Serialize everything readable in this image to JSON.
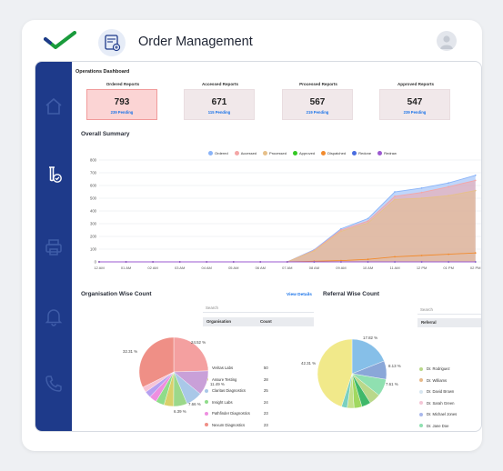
{
  "app": {
    "title": "Order Management"
  },
  "dashboard": {
    "title": "Operations Dashboard",
    "stats": [
      {
        "label": "Ordered Reports",
        "value": "793",
        "pending": "239 Pending",
        "active": true
      },
      {
        "label": "Accessed Reports",
        "value": "671",
        "pending": "115 Pending",
        "active": false
      },
      {
        "label": "Processed Reports",
        "value": "567",
        "pending": "219 Pending",
        "active": false
      },
      {
        "label": "Approved Reports",
        "value": "547",
        "pending": "239 Pending",
        "active": false
      }
    ]
  },
  "overall": {
    "title": "Overall Summary"
  },
  "chart_data": {
    "type": "area",
    "title": "Overall Summary",
    "x": [
      "12 AM",
      "01 AM",
      "02 AM",
      "03 AM",
      "04 AM",
      "05 AM",
      "06 AM",
      "07 AM",
      "08 AM",
      "09 AM",
      "10 AM",
      "11 AM",
      "12 PM",
      "01 PM",
      "02 PM"
    ],
    "ylim": [
      0,
      800
    ],
    "yticks": [
      "800",
      "700",
      "600",
      "500",
      "400",
      "300",
      "200",
      "100",
      "0"
    ],
    "legend_position": "top",
    "series": [
      {
        "name": "Ordered",
        "color": "#8ab4f8",
        "values": [
          0,
          0,
          0,
          0,
          0,
          0,
          0,
          0,
          95,
          260,
          340,
          550,
          580,
          620,
          680
        ]
      },
      {
        "name": "Accessed",
        "color": "#f4a6a6",
        "values": [
          0,
          0,
          0,
          0,
          0,
          0,
          0,
          0,
          90,
          250,
          320,
          515,
          545,
          590,
          640
        ]
      },
      {
        "name": "Processed",
        "color": "#e6c08a",
        "values": [
          0,
          0,
          0,
          0,
          0,
          0,
          0,
          0,
          85,
          240,
          305,
          490,
          500,
          520,
          560
        ]
      },
      {
        "name": "Approved",
        "color": "#34c924",
        "values": [
          0,
          0,
          0,
          0,
          0,
          0,
          0,
          0,
          0,
          0,
          0,
          0,
          0,
          0,
          0
        ]
      },
      {
        "name": "Dispatched",
        "color": "#f28b2d",
        "values": [
          0,
          0,
          0,
          0,
          0,
          0,
          0,
          0,
          5,
          10,
          20,
          40,
          50,
          60,
          70
        ]
      },
      {
        "name": "Redone",
        "color": "#4a6ee0",
        "values": [
          0,
          0,
          0,
          0,
          0,
          0,
          0,
          0,
          0,
          0,
          0,
          0,
          0,
          0,
          0
        ]
      },
      {
        "name": "Redraw",
        "color": "#9b59d0",
        "values": [
          0,
          0,
          0,
          0,
          0,
          0,
          0,
          0,
          0,
          0,
          0,
          0,
          0,
          0,
          0
        ]
      }
    ]
  },
  "org": {
    "title": "Organisation Wise Count",
    "view_details": "View Details",
    "search_placeholder": "Search",
    "columns": [
      "Organisation",
      "Count"
    ],
    "rows": [
      {
        "name": "Veritas Labs",
        "count": "50",
        "color": "#9bd88a"
      },
      {
        "name": "Assure Testing",
        "count": "28",
        "color": "#d9d06a"
      },
      {
        "name": "Claritas Diagnostics",
        "count": "25",
        "color": "#a9c8e8"
      },
      {
        "name": "Insight Labs",
        "count": "24",
        "color": "#8fdc8a"
      },
      {
        "name": "Pathfinder Diagnostics",
        "count": "23",
        "color": "#ee8fe0"
      },
      {
        "name": "Nexum Diagnostics",
        "count": "23",
        "color": "#ef8f86"
      }
    ],
    "pie_labels": [
      "24.52 %",
      "32.31 %",
      "11.49 %",
      "7.66 %",
      "6.39 %"
    ]
  },
  "referral": {
    "title": "Referral Wise Count",
    "search_placeholder": "Search",
    "columns": [
      "Referral"
    ],
    "rows": [
      {
        "name": "Dr. Rodriguez",
        "color": "#b9d88a"
      },
      {
        "name": "Dr. Williams",
        "color": "#e6b98a"
      },
      {
        "name": "Dr. David Brown",
        "color": "#d8e6f0"
      },
      {
        "name": "Dr. Sarah Green",
        "color": "#f4c6d6"
      },
      {
        "name": "Dr. Michael Jones",
        "color": "#a9b8ec"
      },
      {
        "name": "Dr. Jane Doe",
        "color": "#8fe0b0"
      }
    ],
    "pie_labels": [
      "17.82 %",
      "42.31 %",
      "8.13 %",
      "7.61 %"
    ]
  }
}
